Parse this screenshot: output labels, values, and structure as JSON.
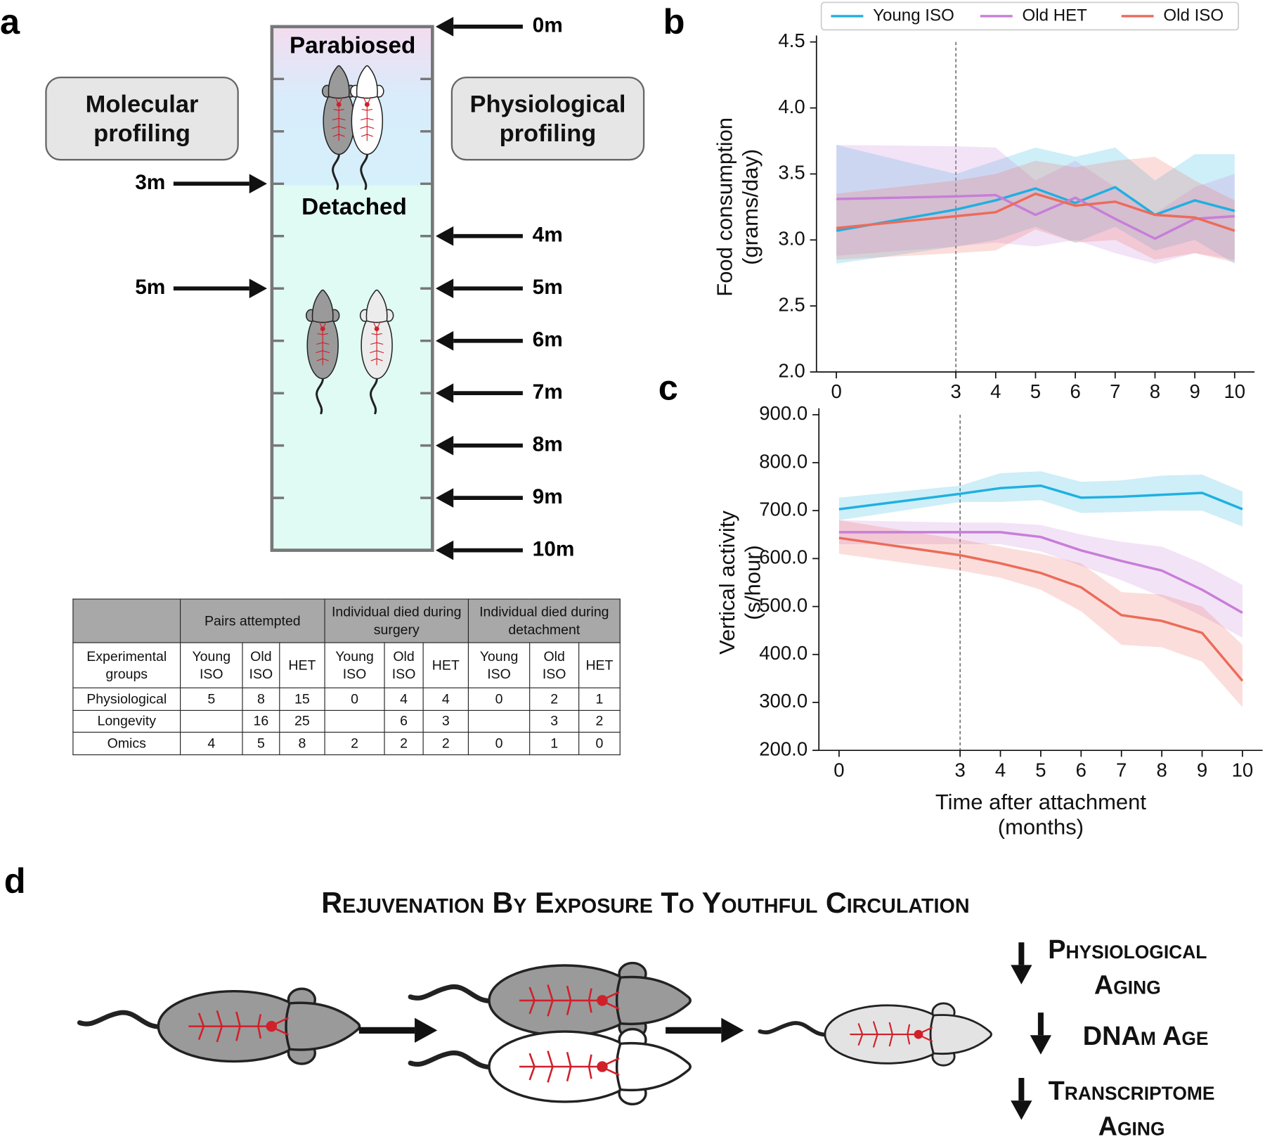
{
  "panel_labels": [
    "a",
    "b",
    "c",
    "d"
  ],
  "diagram": {
    "phases": [
      "Parabiosed",
      "Detached"
    ],
    "profiles": [
      "Molecular profiling",
      "Physiological profiling"
    ],
    "left_timepoints": [
      "3m",
      "5m"
    ],
    "right_timepoints": [
      "0m",
      "4m",
      "5m",
      "6m",
      "7m",
      "8m",
      "9m",
      "10m"
    ]
  },
  "table": {
    "groups": [
      "Pairs attempted",
      "Individual died during surgery",
      "Individual died during detachment"
    ],
    "columns": [
      "Experimental groups",
      "Young ISO",
      "Old ISO",
      "HET",
      "Young ISO",
      "Old ISO",
      "HET",
      "Young ISO",
      "Old ISO",
      "HET"
    ],
    "rows": [
      [
        "Physiological",
        5,
        8,
        15,
        0,
        4,
        4,
        0,
        2,
        1
      ],
      [
        "Longevity",
        null,
        16,
        25,
        null,
        6,
        3,
        null,
        3,
        2
      ],
      [
        "Omics",
        4,
        5,
        8,
        2,
        2,
        2,
        0,
        1,
        0
      ]
    ]
  },
  "chart_data": [
    {
      "type": "line",
      "ylabel": [
        "Food consumption",
        "(grams/day)"
      ],
      "legend": "top",
      "vline": 3,
      "x": [
        0,
        3,
        4,
        5,
        6,
        7,
        8,
        9,
        10
      ],
      "xlim": [
        -0.5,
        10.5
      ],
      "xticks": [
        0,
        3,
        4,
        5,
        6,
        7,
        8,
        9,
        10
      ],
      "ylim": [
        2.0,
        4.5
      ],
      "yticks": [
        {
          "value": 2,
          "label": "2.0"
        },
        2.5,
        {
          "value": 3,
          "label": "3.0"
        },
        3.5,
        {
          "value": 4,
          "label": "4.0"
        },
        4.5
      ],
      "series": [
        {
          "name": "Young ISO",
          "color": "#1fb0e0",
          "values": [
            3.07,
            3.23,
            3.3,
            3.39,
            3.28,
            3.4,
            3.19,
            3.3,
            3.22
          ],
          "lower": [
            2.82,
            2.95,
            3.0,
            3.1,
            2.98,
            3.1,
            2.92,
            3.0,
            2.82
          ],
          "upper": [
            3.72,
            3.5,
            3.6,
            3.7,
            3.63,
            3.7,
            3.45,
            3.65,
            3.65
          ]
        },
        {
          "name": "Old HET",
          "color": "#c77ed8",
          "values": [
            3.31,
            3.33,
            3.34,
            3.19,
            3.32,
            3.16,
            3.01,
            3.16,
            3.18
          ],
          "lower": [
            2.88,
            2.95,
            2.98,
            2.95,
            3.0,
            2.9,
            2.82,
            2.9,
            2.85
          ],
          "upper": [
            3.72,
            3.71,
            3.7,
            3.45,
            3.6,
            3.4,
            3.2,
            3.4,
            3.5
          ]
        },
        {
          "name": "Old ISO",
          "color": "#ec6b5a",
          "values": [
            3.09,
            3.18,
            3.21,
            3.35,
            3.26,
            3.29,
            3.19,
            3.17,
            3.07
          ],
          "lower": [
            2.85,
            2.9,
            2.92,
            3.08,
            2.98,
            3.0,
            2.85,
            2.9,
            2.83
          ],
          "upper": [
            3.35,
            3.45,
            3.5,
            3.6,
            3.55,
            3.6,
            3.63,
            3.45,
            3.3
          ]
        }
      ]
    },
    {
      "type": "line",
      "ylabel": [
        "Vertical activity",
        "(s/hour)"
      ],
      "xlabel": [
        "Time after attachment",
        "(months)"
      ],
      "vline": 3,
      "x": [
        0,
        3,
        4,
        5,
        6,
        7,
        8,
        9,
        10
      ],
      "xlim": [
        -0.5,
        10.5
      ],
      "xticks": [
        0,
        3,
        4,
        5,
        6,
        7,
        8,
        9,
        10
      ],
      "ylim": [
        200,
        900
      ],
      "yticks": [
        {
          "value": 200,
          "label": "200.0"
        },
        {
          "value": 300,
          "label": "300.0"
        },
        {
          "value": 400,
          "label": "400.0"
        },
        {
          "value": 500,
          "label": "500.0"
        },
        {
          "value": 600,
          "label": "600.0"
        },
        {
          "value": 700,
          "label": "700.0"
        },
        {
          "value": 800,
          "label": "800.0"
        },
        {
          "value": 900,
          "label": "900.0"
        }
      ],
      "series": [
        {
          "color": "#1fb0e0",
          "values": [
            703,
            735,
            747,
            752,
            727,
            729,
            733,
            737,
            703
          ],
          "lower": [
            680,
            718,
            718,
            722,
            695,
            697,
            700,
            700,
            667
          ],
          "upper": [
            727,
            752,
            778,
            782,
            760,
            763,
            773,
            775,
            740
          ]
        },
        {
          "color": "#c77ed8",
          "values": [
            655,
            655,
            655,
            645,
            617,
            595,
            575,
            535,
            487
          ],
          "lower": [
            630,
            630,
            630,
            615,
            585,
            555,
            520,
            480,
            435
          ],
          "upper": [
            680,
            675,
            675,
            670,
            650,
            635,
            625,
            590,
            545
          ]
        },
        {
          "color": "#ec6b5a",
          "values": [
            643,
            607,
            590,
            570,
            540,
            482,
            470,
            445,
            345
          ],
          "lower": [
            610,
            575,
            560,
            535,
            490,
            420,
            415,
            385,
            290
          ],
          "upper": [
            680,
            640,
            625,
            610,
            590,
            530,
            525,
            500,
            420
          ]
        }
      ]
    }
  ],
  "summary": {
    "title": "Rejuvenation By Exposure To Youthful Circulation",
    "outcomes": [
      "Physiological Aging",
      "DNAm Age",
      "Transcriptome Aging"
    ]
  }
}
